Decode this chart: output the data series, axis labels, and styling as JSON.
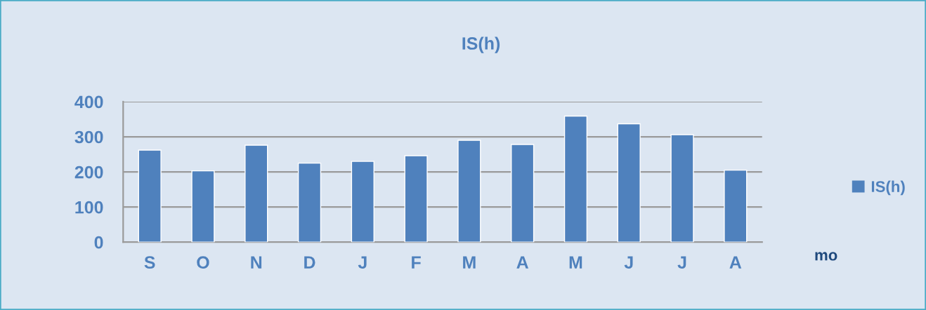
{
  "chart_data": {
    "type": "bar",
    "title": "IS(h)",
    "xlabel": "mo",
    "categories": [
      "S",
      "O",
      "N",
      "D",
      "J",
      "F",
      "M",
      "A",
      "M",
      "J",
      "J",
      "A"
    ],
    "series": [
      {
        "name": "IS(h)",
        "color": "#4f81bd",
        "values": [
          262,
          203,
          276,
          225,
          230,
          246,
          290,
          278,
          359,
          337,
          306,
          205
        ]
      }
    ],
    "ylim": [
      0,
      400
    ],
    "yticks": [
      0,
      100,
      200,
      300,
      400
    ],
    "grid": "y",
    "legend": "right"
  }
}
